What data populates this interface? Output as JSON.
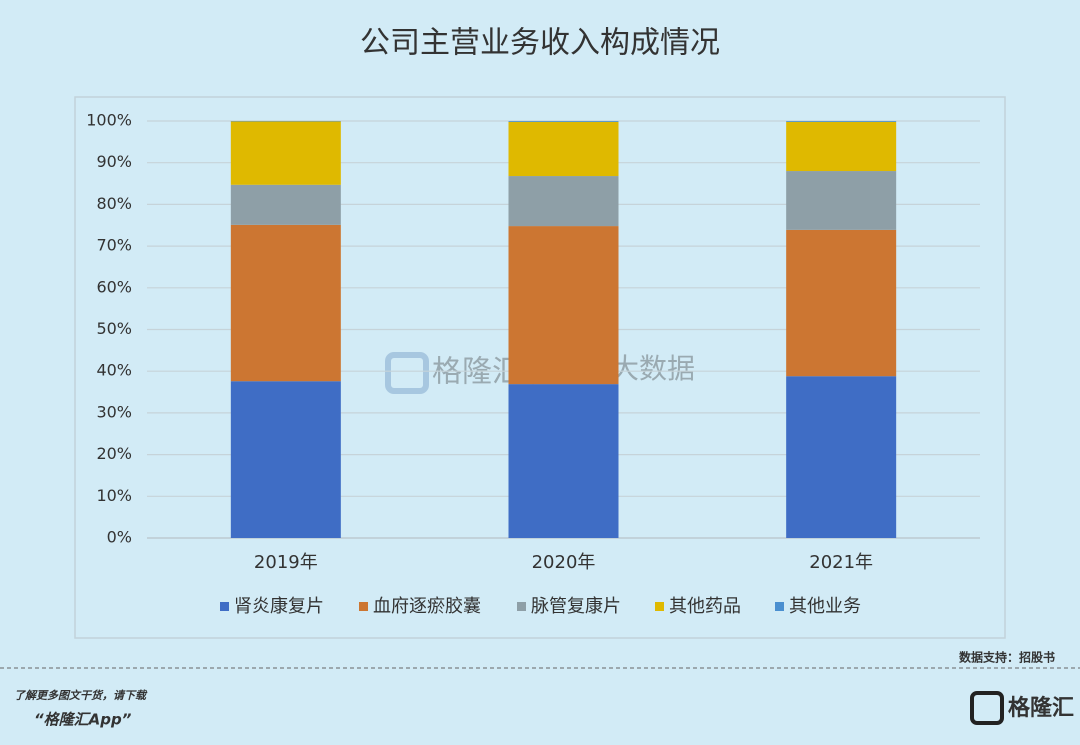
{
  "chart_data": {
    "type": "bar",
    "stacked": true,
    "title": "公司主营业务收入构成情况",
    "categories": [
      "2019年",
      "2020年",
      "2021年"
    ],
    "series": [
      {
        "name": "肾炎康复片",
        "color": "#3f6dc5",
        "values": [
          37.6,
          36.9,
          38.8
        ]
      },
      {
        "name": "血府逐瘀胶囊",
        "color": "#cc7632",
        "values": [
          37.5,
          37.9,
          35.1
        ]
      },
      {
        "name": "脉管复康片",
        "color": "#8e9fa7",
        "values": [
          9.6,
          12.0,
          14.1
        ]
      },
      {
        "name": "其他药品",
        "color": "#dfb900",
        "values": [
          15.2,
          13.0,
          11.8
        ]
      },
      {
        "name": "其他业务",
        "color": "#4a8fd0",
        "values": [
          0.1,
          0.2,
          0.2
        ]
      }
    ],
    "ylim": [
      0,
      100
    ],
    "yticks": [
      {
        "value": 0,
        "label": "0%"
      },
      {
        "value": 10,
        "label": "10%"
      },
      {
        "value": 20,
        "label": "20%"
      },
      {
        "value": 30,
        "label": "30%"
      },
      {
        "value": 40,
        "label": "40%"
      },
      {
        "value": 50,
        "label": "50%"
      },
      {
        "value": 60,
        "label": "60%"
      },
      {
        "value": 70,
        "label": "70%"
      },
      {
        "value": 80,
        "label": "80%"
      },
      {
        "value": 90,
        "label": "90%"
      },
      {
        "value": 100,
        "label": "100%"
      }
    ],
    "grid": true,
    "legend": "bottom"
  },
  "watermark": {
    "brand": "格隆汇",
    "product": "勾股大数据"
  },
  "source": "数据支持：招股书",
  "footer": {
    "prompt": "了解更多图文干货，请下载",
    "app": "“格隆汇App”",
    "logo": "格隆汇"
  }
}
